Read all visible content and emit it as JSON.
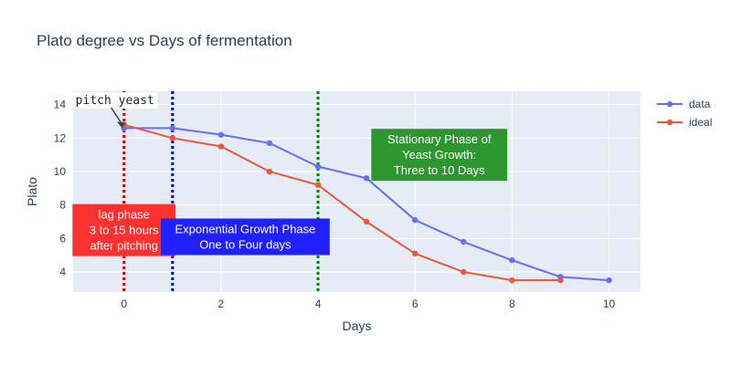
{
  "chart_data": {
    "type": "line",
    "title": "Plato degree vs Days of fermentation",
    "xlabel": "Days",
    "ylabel": "Plato",
    "xlim": [
      -1.05,
      10.65
    ],
    "ylim": [
      2.8,
      14.8
    ],
    "x_ticks": [
      0,
      2,
      4,
      6,
      8,
      10
    ],
    "y_ticks": [
      4,
      6,
      8,
      10,
      12,
      14
    ],
    "grid": true,
    "legend_position": "top-right",
    "series": [
      {
        "name": "data",
        "color": "#636efa",
        "x": [
          0,
          1,
          2,
          3,
          4,
          5,
          6,
          7,
          8,
          9,
          10
        ],
        "y": [
          12.6,
          12.6,
          12.2,
          11.7,
          10.3,
          9.6,
          7.1,
          5.8,
          4.7,
          3.7,
          3.5
        ]
      },
      {
        "name": "ideal",
        "color": "#ef553b",
        "x": [
          0,
          1,
          2,
          3,
          4,
          5,
          6,
          7,
          8,
          9
        ],
        "y": [
          12.8,
          12.0,
          11.5,
          10.0,
          9.2,
          7.0,
          5.1,
          4.0,
          3.5,
          3.5
        ]
      }
    ],
    "vlines": [
      {
        "x": 0,
        "color": "#cc0000"
      },
      {
        "x": 1,
        "color": "#0000cc"
      },
      {
        "x": 4,
        "color": "#008000"
      }
    ],
    "annotations": [
      {
        "lines": [
          "lag phase",
          "3 to 15 hours",
          "after pitching"
        ],
        "x": 0,
        "y": 6.5,
        "bg": "#ff3030"
      },
      {
        "lines": [
          "Exponential Growth Phase",
          "One to Four days"
        ],
        "x": 2.5,
        "y": 6.1,
        "bg": "#2020ff"
      },
      {
        "lines": [
          "Stationary Phase of",
          "Yeast Growth:",
          "Three to 10 Days"
        ],
        "x": 6.5,
        "y": 11.0,
        "bg": "#2e962e"
      }
    ],
    "arrow_annotation": {
      "text": "pitch yeast",
      "x": 0,
      "y": 12.6
    }
  }
}
